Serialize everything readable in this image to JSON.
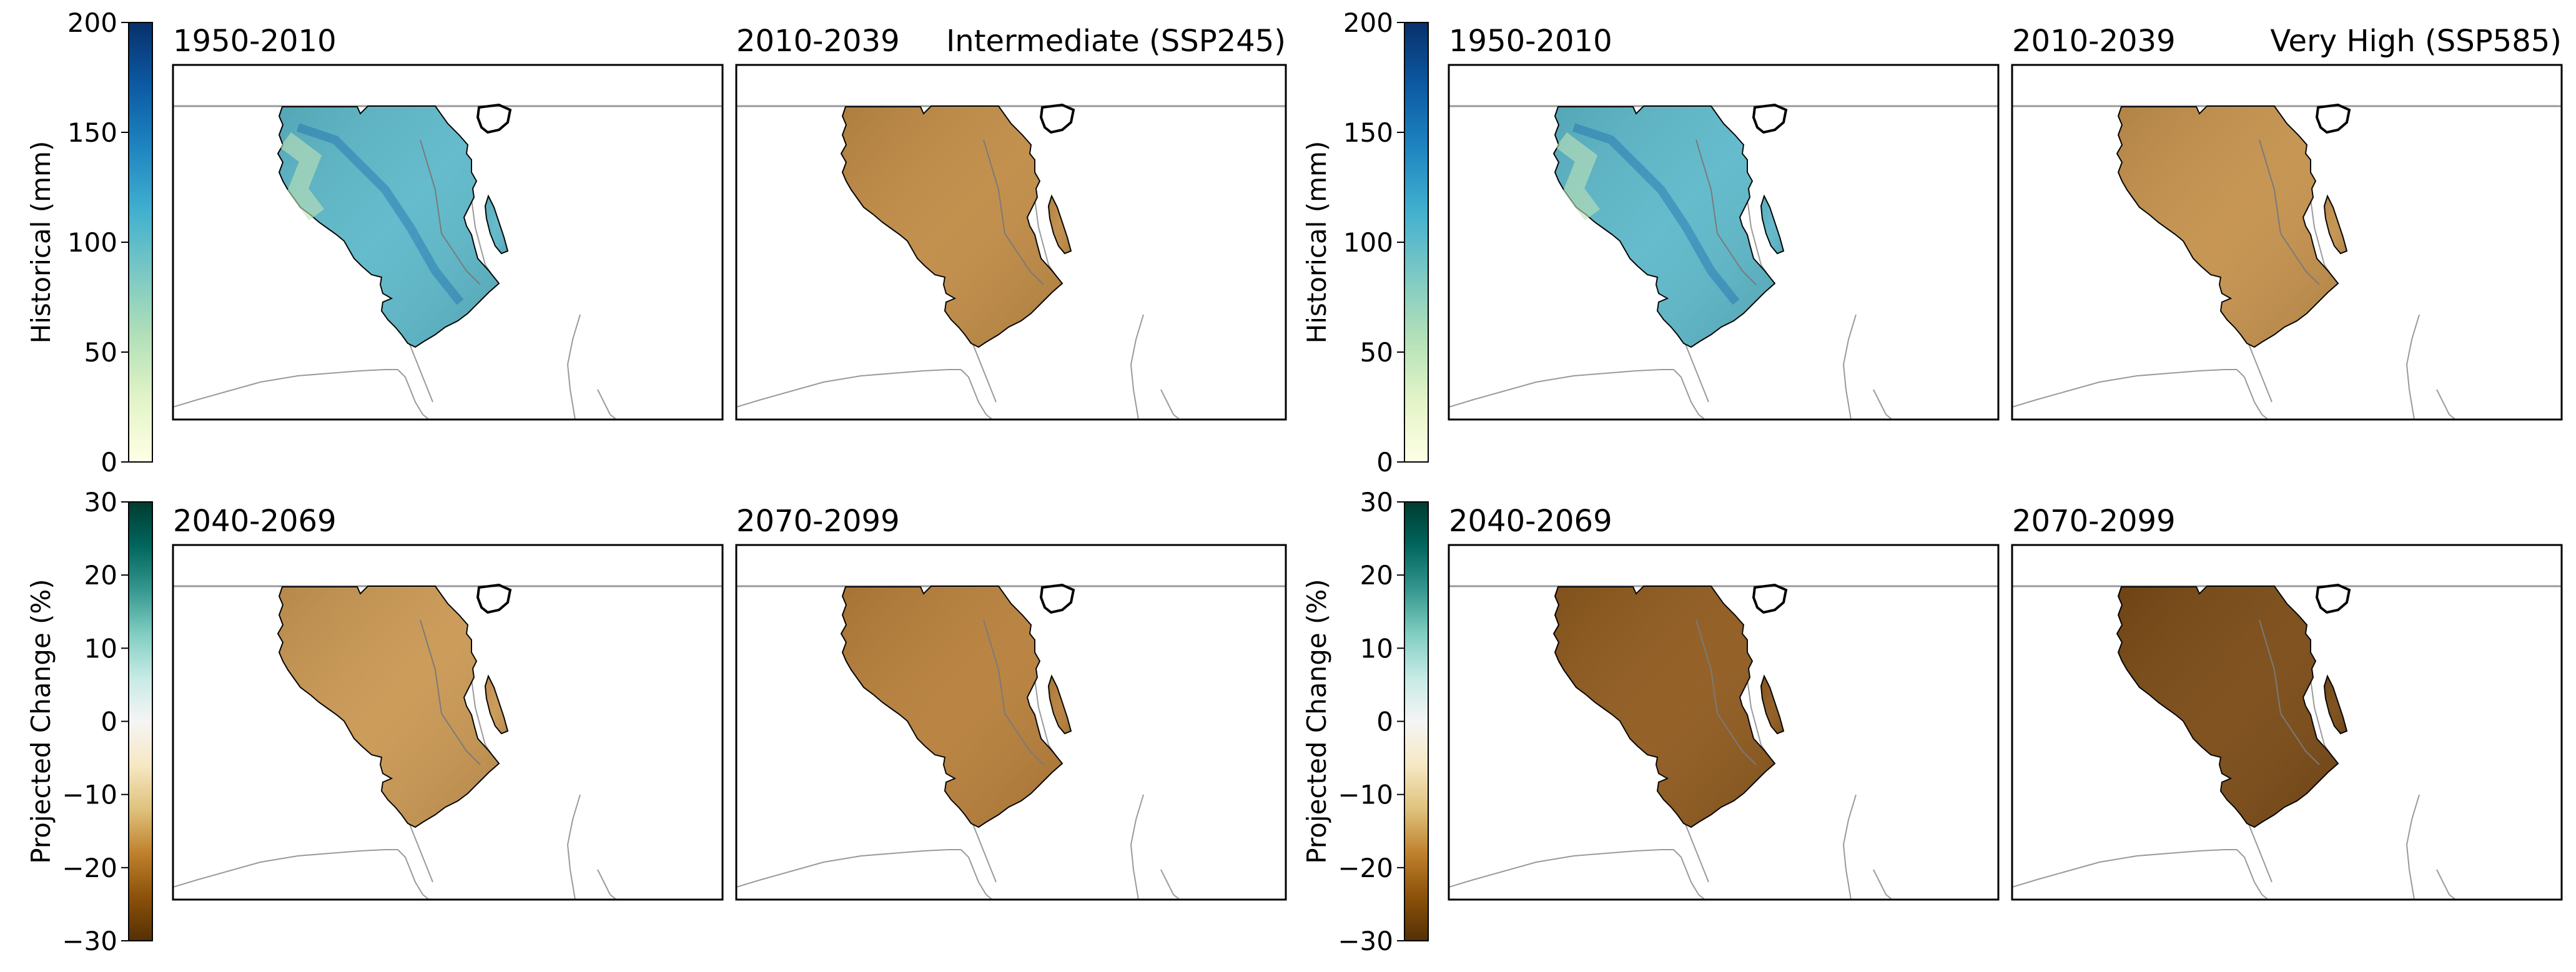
{
  "figure": {
    "groups": [
      {
        "scenario": "Intermediate (SSP245)",
        "id": "ssp245"
      },
      {
        "scenario": "Very High (SSP585)",
        "id": "ssp585"
      }
    ],
    "panel_titles": {
      "historical": "1950-2010",
      "p1": "2010-2039",
      "p2": "2040-2069",
      "p3": "2070-2099"
    },
    "colorbars": {
      "historical": {
        "label": "Historical (mm)",
        "ticks": [
          "0",
          "50",
          "100",
          "150",
          "200"
        ],
        "tick_values": [
          0,
          50,
          100,
          150,
          200
        ],
        "min": 0,
        "max": 200,
        "colors": [
          "#ffffe5",
          "#e2f4c7",
          "#b2e0b8",
          "#7bc8c4",
          "#41b0cf",
          "#1f85c0",
          "#0c5aa3",
          "#08306b"
        ]
      },
      "change": {
        "label": "Projected Change (%)",
        "ticks": [
          "−30",
          "−20",
          "−10",
          "0",
          "10",
          "20",
          "30"
        ],
        "tick_values": [
          -30,
          -20,
          -10,
          0,
          10,
          20,
          30
        ],
        "min": -30,
        "max": 30,
        "colors": [
          "#543005",
          "#8c510a",
          "#bf812d",
          "#dfc27d",
          "#f6e8c3",
          "#f5f5f5",
          "#c7eae5",
          "#80cdc1",
          "#35978f",
          "#01665e",
          "#003c30"
        ]
      }
    },
    "panel_fill": {
      "historical": "#5db8c9",
      "ssp245": {
        "p1": "#c08b45",
        "p2": "#c99752",
        "p3": "#b77f3a"
      },
      "ssp585": {
        "p1": "#c4914c",
        "p2": "#8f5a1e",
        "p3": "#7a4a15"
      }
    }
  }
}
